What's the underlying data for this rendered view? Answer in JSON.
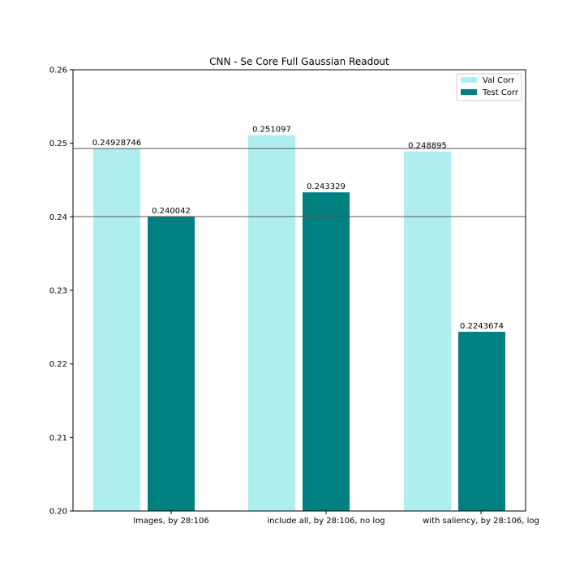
{
  "chart_data": {
    "type": "bar",
    "title": "CNN - Se Core Full Gaussian Readout",
    "xlabel": "",
    "ylabel": "",
    "categories": [
      "Images, by 28:106",
      "include all, by 28:106, no log",
      "with saliency, by 28:106, log"
    ],
    "series": [
      {
        "name": "Val Corr",
        "values": [
          0.24928746,
          0.251097,
          0.248895
        ],
        "labels": [
          "0.24928746",
          "0.251097",
          "0.248895"
        ],
        "color": "#afeeee"
      },
      {
        "name": "Test Corr",
        "values": [
          0.240042,
          0.243329,
          0.2243674
        ],
        "labels": [
          "0.240042",
          "0.243329",
          "0.2243674"
        ],
        "color": "#008080"
      }
    ],
    "ylim": [
      0.2,
      0.26
    ],
    "yticks": [
      "0.20",
      "0.21",
      "0.22",
      "0.23",
      "0.24",
      "0.25",
      "0.26"
    ],
    "hlines": [
      0.24928746,
      0.240042
    ],
    "legend": "top-right",
    "grid": false
  }
}
